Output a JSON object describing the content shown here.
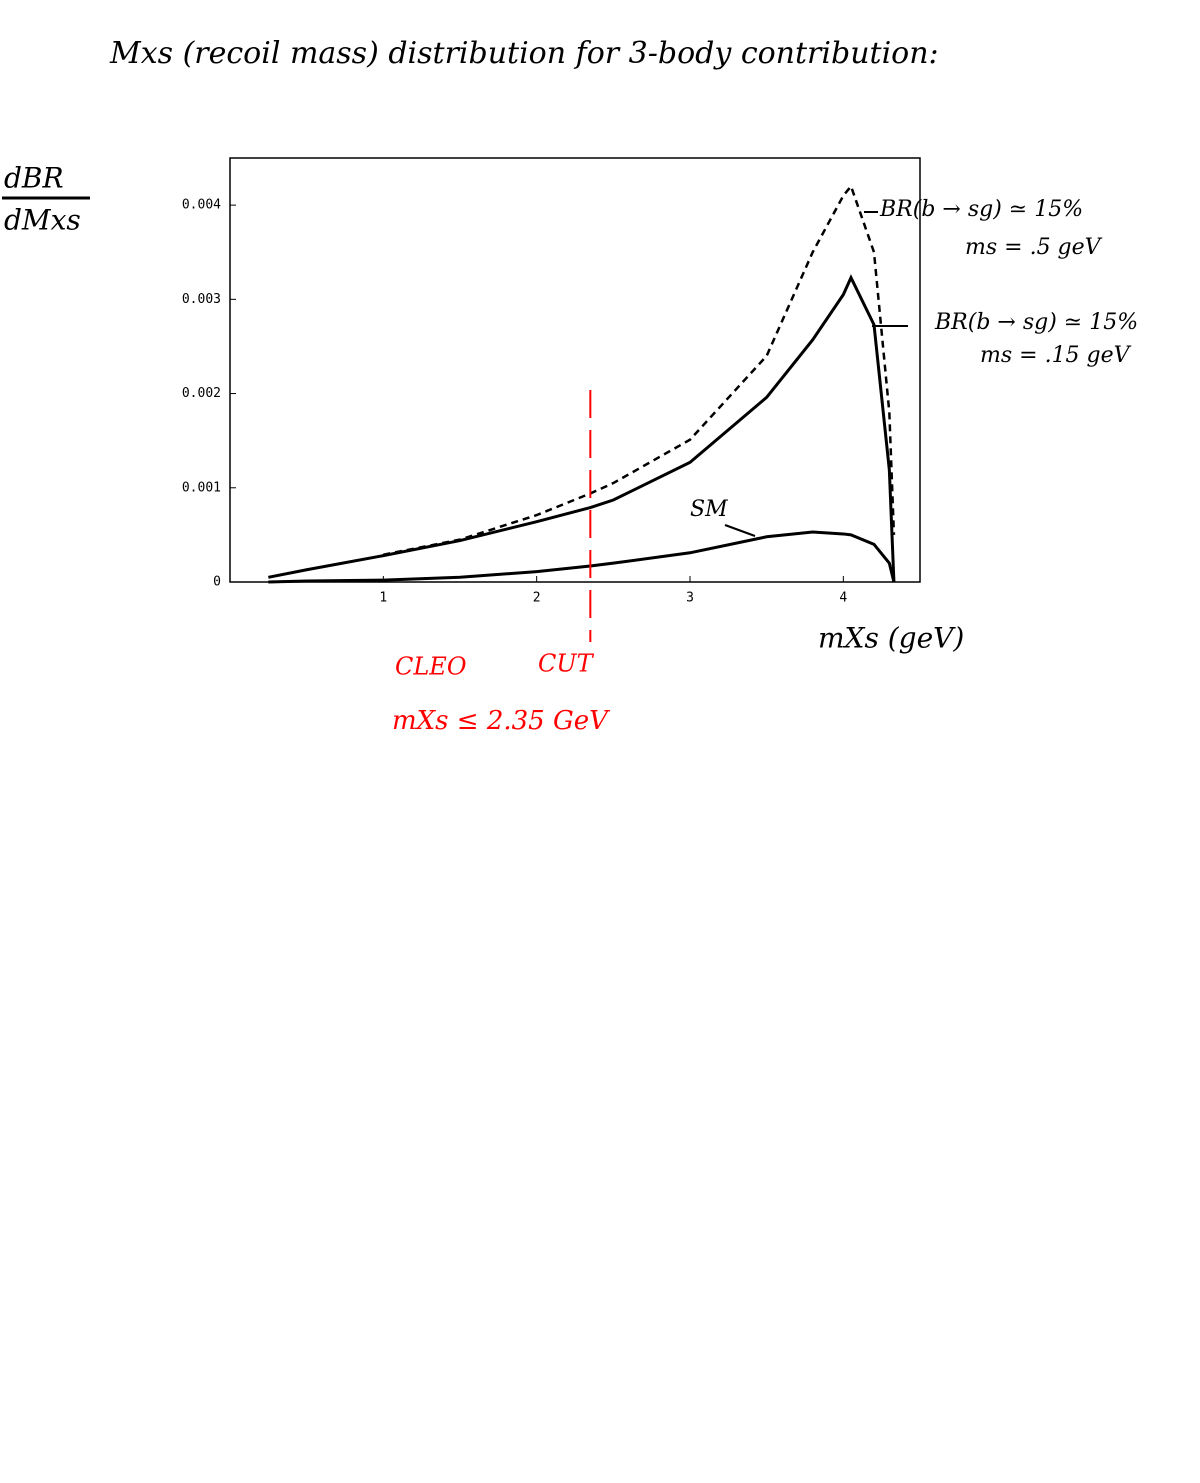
{
  "chart_data": {
    "type": "line",
    "title": "Mxs (recoil mass) distribution for 3-body contribution:",
    "ylabel": {
      "numerator": "dBR",
      "denominator": "dMxs"
    },
    "xlabel": "mXs (geV)",
    "x": [
      0.25,
      0.5,
      1,
      1.5,
      2,
      2.35,
      2.5,
      3,
      3.5,
      3.8,
      4,
      4.05,
      4.2,
      4.3,
      4.33
    ],
    "series": [
      {
        "name": "BR(b → sg) ≃ 15%",
        "note": "ms = .5 geV",
        "color": "#000000",
        "dash": true,
        "values": [
          null,
          null,
          0.00029,
          0.00045,
          0.00071,
          0.00094,
          0.00105,
          0.00151,
          0.0024,
          0.0035,
          0.0041,
          0.0042,
          0.0035,
          0.0018,
          0.0005
        ]
      },
      {
        "name": "BR(b → sg) ≃ 15%",
        "note": "ms = .15 geV",
        "color": "#000000",
        "dash": false,
        "values": [
          5e-05,
          0.00013,
          0.00028,
          0.00044,
          0.00064,
          0.00079,
          0.00087,
          0.00127,
          0.00196,
          0.00257,
          0.00305,
          0.00323,
          0.00273,
          0.00119,
          0
        ]
      },
      {
        "name": "SM",
        "color": "#000000",
        "dash": false,
        "values": [
          0,
          1e-05,
          2e-05,
          5e-05,
          0.00011,
          0.00017,
          0.0002,
          0.00031,
          0.00048,
          0.00053,
          0.00051,
          0.0005,
          0.0004,
          0.0002,
          0
        ]
      }
    ],
    "xlim": [
      0,
      4.5
    ],
    "xticks": [
      1,
      2,
      3,
      4
    ],
    "ylim": [
      0,
      0.0045
    ],
    "yticks": [
      0,
      0.001,
      0.002,
      0.003,
      0.004
    ],
    "grid": false,
    "cut": {
      "x": 2.35,
      "color": "#ff0000",
      "labels": [
        "CLEO",
        "CUT"
      ],
      "text": "mXs ≤ 2.35 GeV"
    }
  }
}
